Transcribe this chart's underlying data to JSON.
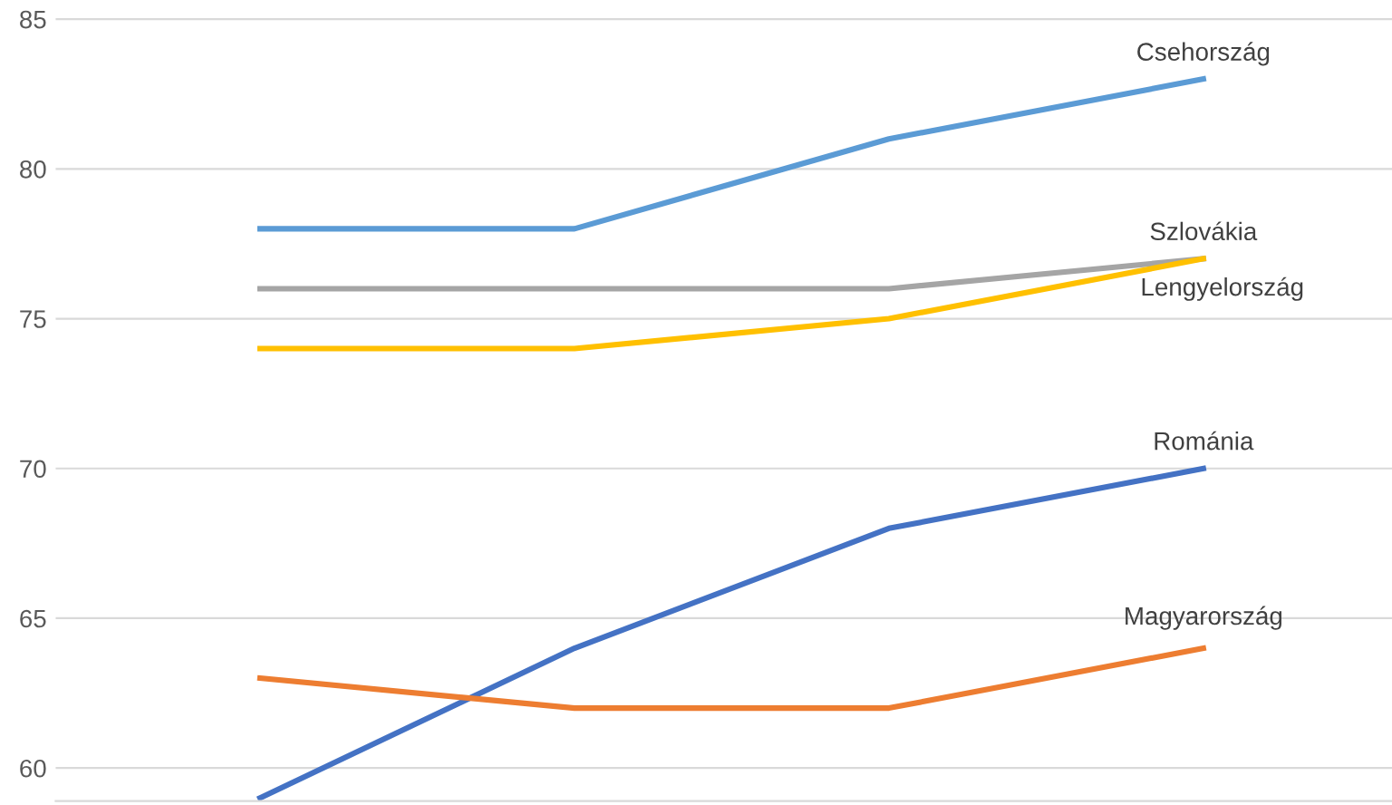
{
  "chart_data": {
    "type": "line",
    "categories": [
      null,
      null,
      null,
      null
    ],
    "series": [
      {
        "name": "Csehország",
        "color": "#5b9bd5",
        "values": [
          78,
          78,
          81,
          83
        ]
      },
      {
        "name": "Szlovákia",
        "color": "#a5a5a5",
        "values": [
          76,
          76,
          76,
          77
        ]
      },
      {
        "name": "Lengyelország",
        "color": "#ffc000",
        "values": [
          74,
          74,
          75,
          77
        ]
      },
      {
        "name": "Románia",
        "color": "#4472c4",
        "values": [
          59,
          64,
          68,
          70
        ]
      },
      {
        "name": "Magyarország",
        "color": "#ed7d31",
        "values": [
          63,
          62,
          62,
          64
        ]
      }
    ],
    "ylim": [
      58.9,
      85.1
    ],
    "yticks": [
      60,
      65,
      70,
      75,
      80,
      85
    ],
    "grid": "y",
    "legend": false,
    "tick_labels": "y",
    "marker": "none",
    "line_style": "solid"
  }
}
